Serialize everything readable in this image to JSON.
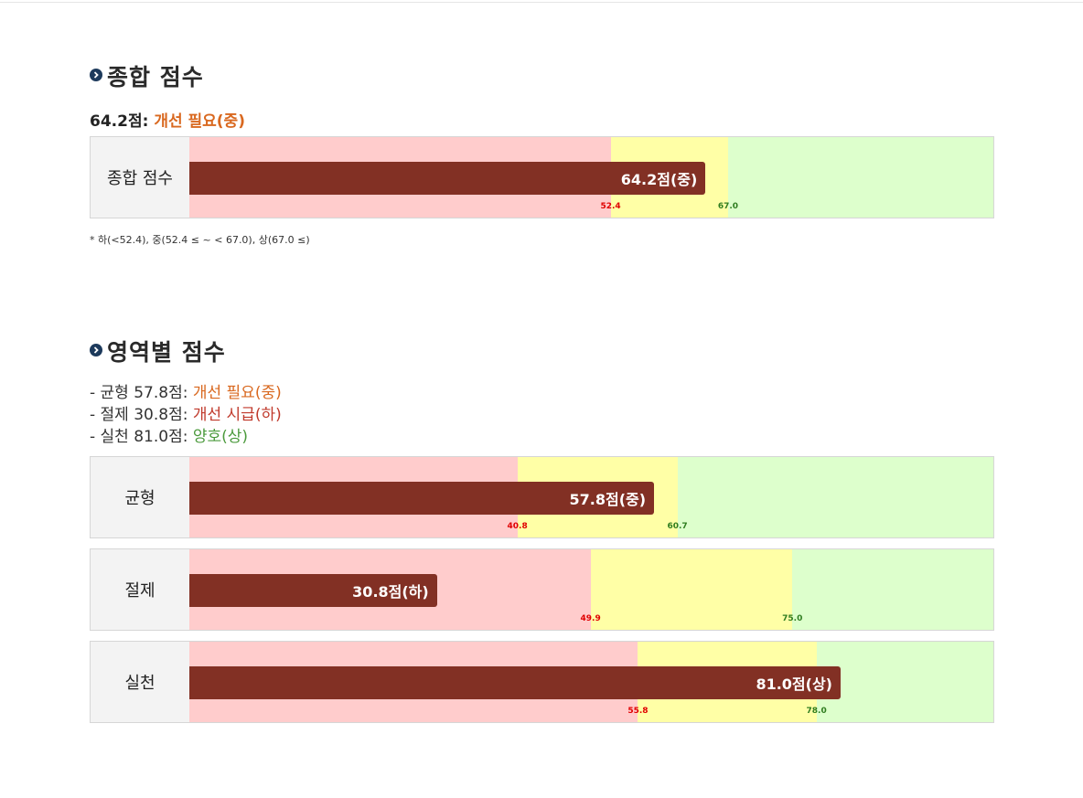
{
  "overall": {
    "title": "종합 점수",
    "summary_score": "64.2점: ",
    "summary_grade": "개선 필요(중)",
    "footnote": "* 하(<52.4), 중(52.4 ≤ ~ < 67.0), 상(67.0 ≤)"
  },
  "domains": {
    "title": "영역별 점수",
    "lines": [
      {
        "prefix": "- 균형 57.8점: ",
        "grade": "개선 필요(중)"
      },
      {
        "prefix": "- 절제 30.8점: ",
        "grade": "개선 시급(하)"
      },
      {
        "prefix": "- 실천 81.0점: ",
        "grade": "양호(상)"
      }
    ]
  },
  "colors": {
    "bar": "#823024",
    "zone_low": "#ffcccc",
    "zone_mid": "#ffffa6",
    "zone_high": "#ddffcc",
    "grade_mid": "#d9681f",
    "grade_low": "#c0392b",
    "grade_high": "#4b9a3c",
    "bullet": "#1d3a5c"
  },
  "icons": {
    "section_bullet": "chevron-right-circle-icon"
  },
  "chart_data": [
    {
      "type": "bar",
      "orientation": "horizontal",
      "category": "종합 점수",
      "value": 64.2,
      "value_label": "64.2점(중)",
      "xlim": [
        0,
        100
      ],
      "thresholds": [
        52.4,
        67.0
      ],
      "threshold_labels": [
        "52.4",
        "67.0"
      ]
    },
    {
      "type": "bar",
      "orientation": "horizontal",
      "category": "균형",
      "value": 57.8,
      "value_label": "57.8점(중)",
      "xlim": [
        0,
        100
      ],
      "thresholds": [
        40.8,
        60.7
      ],
      "threshold_labels": [
        "40.8",
        "60.7"
      ]
    },
    {
      "type": "bar",
      "orientation": "horizontal",
      "category": "절제",
      "value": 30.8,
      "value_label": "30.8점(하)",
      "xlim": [
        0,
        100
      ],
      "thresholds": [
        49.9,
        75.0
      ],
      "threshold_labels": [
        "49.9",
        "75.0"
      ]
    },
    {
      "type": "bar",
      "orientation": "horizontal",
      "category": "실천",
      "value": 81.0,
      "value_label": "81.0점(상)",
      "xlim": [
        0,
        100
      ],
      "thresholds": [
        55.8,
        78.0
      ],
      "threshold_labels": [
        "55.8",
        "78.0"
      ]
    }
  ]
}
